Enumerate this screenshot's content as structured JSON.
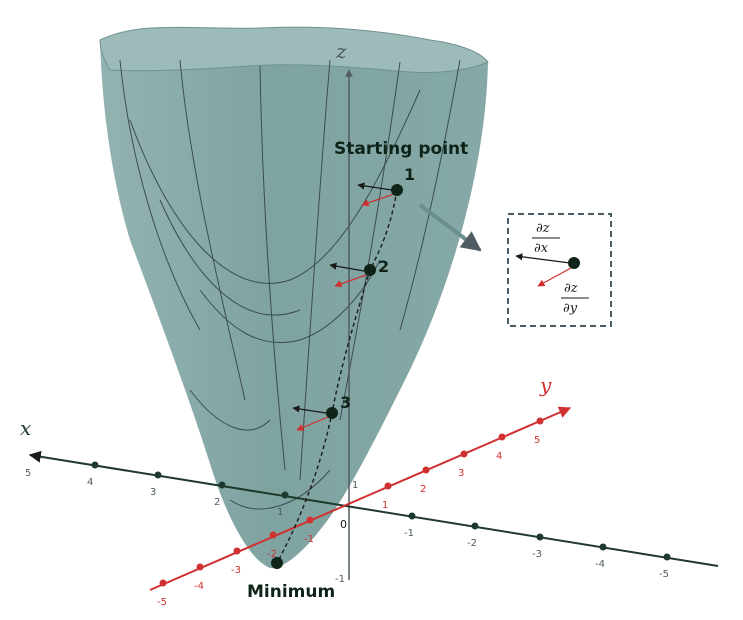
{
  "axes": {
    "x_label": "x",
    "y_label": "y",
    "z_label": "z",
    "origin_label": "0",
    "x_ticks": [
      "5",
      "4",
      "3",
      "2",
      "1",
      "-1",
      "-2",
      "-3",
      "-4",
      "-5"
    ],
    "y_ticks": [
      "-5",
      "-4",
      "-3",
      "-2",
      "-1",
      "1",
      "2",
      "3",
      "4",
      "5"
    ],
    "z_ticks": [
      "1",
      "-1"
    ],
    "x_color": "#1e3a2e",
    "y_color": "#d0302f",
    "z_color": "#4f5c62"
  },
  "surface": {
    "color": "#7fa3a1",
    "rim_color": "#9dbbb9",
    "contour_color": "#2f3d3f"
  },
  "points": [
    {
      "label": "1"
    },
    {
      "label": "2"
    },
    {
      "label": "3"
    }
  ],
  "labels": {
    "start": "Starting point",
    "minimum": "Minimum"
  },
  "legend": {
    "dx_num": "∂z",
    "dx_den": "∂x",
    "dy_num": "∂z",
    "dy_den": "∂y",
    "box_color": "#4a5c63",
    "dx_arrow_color": "#1a1a1a",
    "dy_arrow_color": "#d0302f"
  }
}
